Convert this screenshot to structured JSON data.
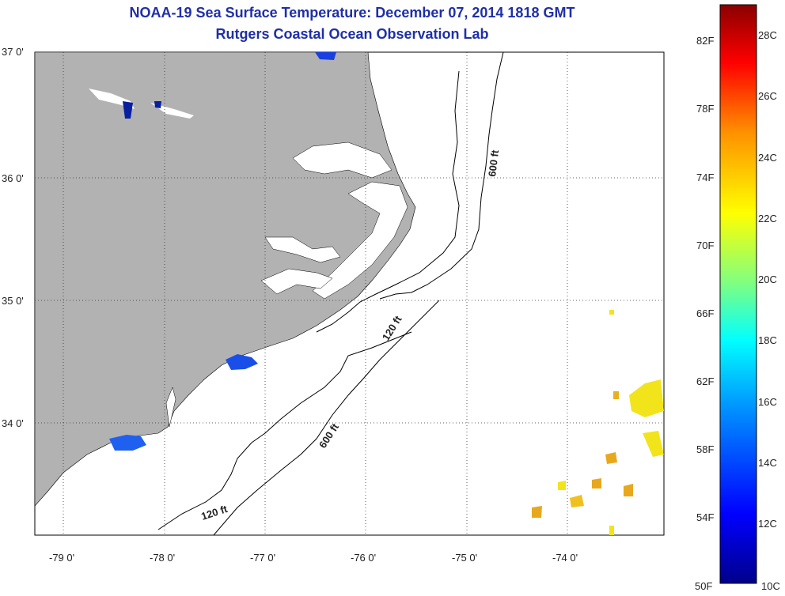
{
  "title": {
    "line1": "NOAA-19 Sea Surface Temperature:  December 07, 2014 1818 GMT",
    "line2": "Rutgers Coastal Ocean Observation Lab"
  },
  "map": {
    "lat_labels": [
      "37 0'",
      "36 0'",
      "35 0'",
      "34 0'"
    ],
    "lon_labels": [
      "-79 0'",
      "-78 0'",
      "-77 0'",
      "-76 0'",
      "-75 0'",
      "-74 0'"
    ],
    "contour_labels": [
      "600 ft",
      "120 ft",
      "600 ft",
      "120 ft"
    ],
    "land_color": "#b2b2b2"
  },
  "colorbar": {
    "fahrenheit": [
      "82F",
      "78F",
      "74F",
      "70F",
      "66F",
      "62F",
      "58F",
      "54F",
      "50F"
    ],
    "celsius": [
      "28C",
      "26C",
      "24C",
      "22C",
      "20C",
      "18C",
      "16C",
      "14C",
      "12C",
      "10C"
    ],
    "colors": [
      "#800000",
      "#ff0000",
      "#ff8000",
      "#ffff00",
      "#80ff80",
      "#00ffff",
      "#0080ff",
      "#0000ff",
      "#000080"
    ]
  }
}
